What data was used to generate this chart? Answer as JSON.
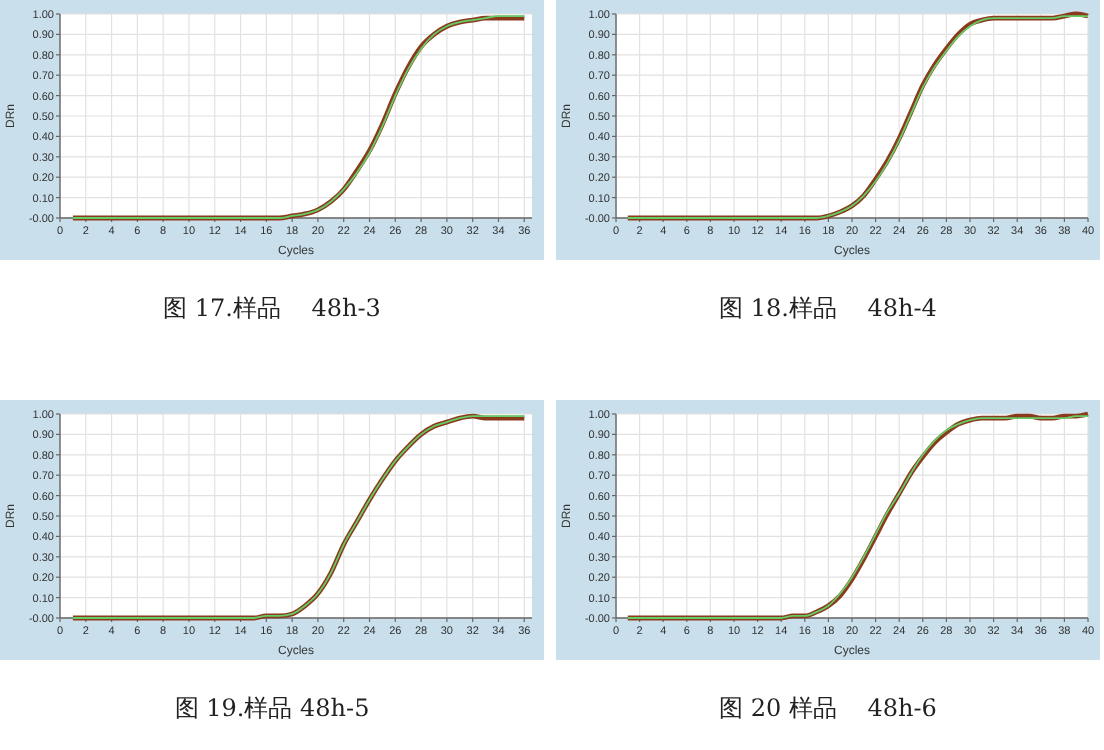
{
  "chart_data": [
    {
      "type": "line",
      "title": "图 17.样品    48h-3",
      "xlabel": "Cycles",
      "ylabel": "DRn",
      "x": [
        1,
        2,
        3,
        4,
        5,
        6,
        7,
        8,
        9,
        10,
        11,
        12,
        13,
        14,
        15,
        16,
        17,
        18,
        19,
        20,
        21,
        22,
        23,
        24,
        25,
        26,
        27,
        28,
        29,
        30,
        31,
        32,
        33,
        34,
        35,
        36
      ],
      "xlim": [
        0,
        36.6
      ],
      "ylim": [
        0,
        1
      ],
      "xticks": [
        0,
        2,
        4,
        6,
        8,
        10,
        12,
        14,
        16,
        18,
        20,
        22,
        24,
        26,
        28,
        30,
        32,
        34,
        36
      ],
      "yticks": [
        {
          "value": 0,
          "label": "-0.00"
        },
        {
          "value": 0.1,
          "label": "0.10"
        },
        {
          "value": 0.2,
          "label": "0.20"
        },
        {
          "value": 0.3,
          "label": "0.30"
        },
        {
          "value": 0.4,
          "label": "0.40"
        },
        {
          "value": 0.5,
          "label": "0.50"
        },
        {
          "value": 0.6,
          "label": "0.60"
        },
        {
          "value": 0.7,
          "label": "0.70"
        },
        {
          "value": 0.8,
          "label": "0.80"
        },
        {
          "value": 0.9,
          "label": "0.90"
        },
        {
          "value": 1,
          "label": "1.00"
        }
      ],
      "grid": true,
      "marker": "none",
      "series": [
        {
          "color": "#8b3a1e",
          "values": [
            0,
            0,
            0,
            0,
            0,
            0,
            0,
            0,
            0,
            0,
            0,
            0,
            0,
            0,
            0,
            0,
            0,
            0.01,
            0.02,
            0.04,
            0.08,
            0.14,
            0.23,
            0.33,
            0.46,
            0.61,
            0.74,
            0.84,
            0.9,
            0.94,
            0.96,
            0.97,
            0.98,
            0.98,
            0.98,
            0.98
          ]
        },
        {
          "color": "#66cc66",
          "values": [
            0,
            0,
            0,
            0,
            0,
            0,
            0,
            0,
            0,
            0,
            0,
            0,
            0,
            0,
            0,
            0,
            0,
            0.01,
            0.02,
            0.04,
            0.08,
            0.14,
            0.22,
            0.32,
            0.45,
            0.6,
            0.73,
            0.83,
            0.9,
            0.94,
            0.96,
            0.97,
            0.98,
            0.99,
            0.99,
            0.99
          ]
        }
      ]
    },
    {
      "type": "line",
      "title": "图 18.样品    48h-4",
      "xlabel": "Cycles",
      "ylabel": "DRn",
      "x": [
        1,
        2,
        3,
        4,
        5,
        6,
        7,
        8,
        9,
        10,
        11,
        12,
        13,
        14,
        15,
        16,
        17,
        18,
        19,
        20,
        21,
        22,
        23,
        24,
        25,
        26,
        27,
        28,
        29,
        30,
        31,
        32,
        33,
        34,
        35,
        36,
        37,
        38,
        39,
        40
      ],
      "xlim": [
        0,
        40
      ],
      "ylim": [
        0,
        1
      ],
      "xticks": [
        0,
        2,
        4,
        6,
        8,
        10,
        12,
        14,
        16,
        18,
        20,
        22,
        24,
        26,
        28,
        30,
        32,
        34,
        36,
        38,
        40
      ],
      "yticks": [
        {
          "value": 0,
          "label": "-0.00"
        },
        {
          "value": 0.1,
          "label": "0.10"
        },
        {
          "value": 0.2,
          "label": "0.20"
        },
        {
          "value": 0.3,
          "label": "0.30"
        },
        {
          "value": 0.4,
          "label": "0.40"
        },
        {
          "value": 0.5,
          "label": "0.50"
        },
        {
          "value": 0.6,
          "label": "0.60"
        },
        {
          "value": 0.7,
          "label": "0.70"
        },
        {
          "value": 0.8,
          "label": "0.80"
        },
        {
          "value": 0.9,
          "label": "0.90"
        },
        {
          "value": 1,
          "label": "1.00"
        }
      ],
      "grid": true,
      "marker": "none",
      "series": [
        {
          "color": "#8b3a1e",
          "values": [
            0,
            0,
            0,
            0,
            0,
            0,
            0,
            0,
            0,
            0,
            0,
            0,
            0,
            0,
            0,
            0,
            0,
            0.01,
            0.03,
            0.06,
            0.11,
            0.19,
            0.28,
            0.39,
            0.52,
            0.65,
            0.75,
            0.83,
            0.9,
            0.95,
            0.97,
            0.98,
            0.98,
            0.98,
            0.98,
            0.98,
            0.98,
            0.99,
            1,
            0.99
          ]
        },
        {
          "color": "#66cc66",
          "values": [
            0,
            0,
            0,
            0,
            0,
            0,
            0,
            0,
            0,
            0,
            0,
            0,
            0,
            0,
            0,
            0,
            0,
            0.01,
            0.03,
            0.06,
            0.11,
            0.18,
            0.27,
            0.38,
            0.51,
            0.64,
            0.74,
            0.82,
            0.89,
            0.94,
            0.97,
            0.98,
            0.98,
            0.98,
            0.98,
            0.98,
            0.98,
            0.99,
            0.99,
            0.99
          ]
        }
      ]
    },
    {
      "type": "line",
      "title": "图 19.样品 48h-5",
      "xlabel": "Cycles",
      "ylabel": "DRn",
      "x": [
        1,
        2,
        3,
        4,
        5,
        6,
        7,
        8,
        9,
        10,
        11,
        12,
        13,
        14,
        15,
        16,
        17,
        18,
        19,
        20,
        21,
        22,
        23,
        24,
        25,
        26,
        27,
        28,
        29,
        30,
        31,
        32,
        33,
        34,
        35,
        36
      ],
      "xlim": [
        0,
        36.6
      ],
      "ylim": [
        0,
        1
      ],
      "xticks": [
        0,
        2,
        4,
        6,
        8,
        10,
        12,
        14,
        16,
        18,
        20,
        22,
        24,
        26,
        28,
        30,
        32,
        34,
        36
      ],
      "yticks": [
        {
          "value": 0,
          "label": "-0.00"
        },
        {
          "value": 0.1,
          "label": "0.10"
        },
        {
          "value": 0.2,
          "label": "0.20"
        },
        {
          "value": 0.3,
          "label": "0.30"
        },
        {
          "value": 0.4,
          "label": "0.40"
        },
        {
          "value": 0.5,
          "label": "0.50"
        },
        {
          "value": 0.6,
          "label": "0.60"
        },
        {
          "value": 0.7,
          "label": "0.70"
        },
        {
          "value": 0.8,
          "label": "0.80"
        },
        {
          "value": 0.9,
          "label": "0.90"
        },
        {
          "value": 1,
          "label": "1.00"
        }
      ],
      "grid": true,
      "marker": "none",
      "series": [
        {
          "color": "#8b3a1e",
          "values": [
            0,
            0,
            0,
            0,
            0,
            0,
            0,
            0,
            0,
            0,
            0,
            0,
            0,
            0,
            0,
            0.01,
            0.01,
            0.02,
            0.06,
            0.12,
            0.22,
            0.36,
            0.47,
            0.58,
            0.68,
            0.77,
            0.84,
            0.9,
            0.94,
            0.96,
            0.98,
            0.99,
            0.98,
            0.98,
            0.98,
            0.98
          ]
        },
        {
          "color": "#66cc66",
          "values": [
            0,
            0,
            0,
            0,
            0,
            0,
            0,
            0,
            0,
            0,
            0,
            0,
            0,
            0,
            0,
            0.01,
            0.01,
            0.02,
            0.06,
            0.12,
            0.22,
            0.36,
            0.47,
            0.58,
            0.68,
            0.77,
            0.84,
            0.9,
            0.94,
            0.96,
            0.98,
            0.99,
            0.99,
            0.99,
            0.99,
            0.99
          ]
        }
      ]
    },
    {
      "type": "line",
      "title": "图 20 样品    48h-6",
      "xlabel": "Cycles",
      "ylabel": "DRn",
      "x": [
        1,
        2,
        3,
        4,
        5,
        6,
        7,
        8,
        9,
        10,
        11,
        12,
        13,
        14,
        15,
        16,
        17,
        18,
        19,
        20,
        21,
        22,
        23,
        24,
        25,
        26,
        27,
        28,
        29,
        30,
        31,
        32,
        33,
        34,
        35,
        36,
        37,
        38,
        39,
        40
      ],
      "xlim": [
        0,
        40
      ],
      "ylim": [
        0,
        1
      ],
      "xticks": [
        0,
        2,
        4,
        6,
        8,
        10,
        12,
        14,
        16,
        18,
        20,
        22,
        24,
        26,
        28,
        30,
        32,
        34,
        36,
        38,
        40
      ],
      "yticks": [
        {
          "value": 0,
          "label": "-0.00"
        },
        {
          "value": 0.1,
          "label": "0.10"
        },
        {
          "value": 0.2,
          "label": "0.20"
        },
        {
          "value": 0.3,
          "label": "0.30"
        },
        {
          "value": 0.4,
          "label": "0.40"
        },
        {
          "value": 0.5,
          "label": "0.50"
        },
        {
          "value": 0.6,
          "label": "0.60"
        },
        {
          "value": 0.7,
          "label": "0.70"
        },
        {
          "value": 0.8,
          "label": "0.80"
        },
        {
          "value": 0.9,
          "label": "0.90"
        },
        {
          "value": 1,
          "label": "1.00"
        }
      ],
      "grid": true,
      "marker": "none",
      "series": [
        {
          "color": "#8b3a1e",
          "values": [
            0,
            0,
            0,
            0,
            0,
            0,
            0,
            0,
            0,
            0,
            0,
            0,
            0,
            0,
            0.01,
            0.01,
            0.03,
            0.06,
            0.11,
            0.19,
            0.29,
            0.4,
            0.51,
            0.61,
            0.71,
            0.79,
            0.86,
            0.91,
            0.95,
            0.97,
            0.98,
            0.98,
            0.98,
            0.99,
            0.99,
            0.98,
            0.98,
            0.99,
            0.99,
            1
          ]
        },
        {
          "color": "#66cc66",
          "values": [
            0,
            0,
            0,
            0,
            0,
            0,
            0,
            0,
            0,
            0,
            0,
            0,
            0,
            0,
            0.01,
            0.01,
            0.03,
            0.06,
            0.12,
            0.2,
            0.3,
            0.41,
            0.52,
            0.61,
            0.71,
            0.8,
            0.87,
            0.92,
            0.95,
            0.97,
            0.98,
            0.98,
            0.98,
            0.98,
            0.98,
            0.98,
            0.98,
            0.98,
            0.99,
            0.99
          ]
        }
      ]
    }
  ]
}
